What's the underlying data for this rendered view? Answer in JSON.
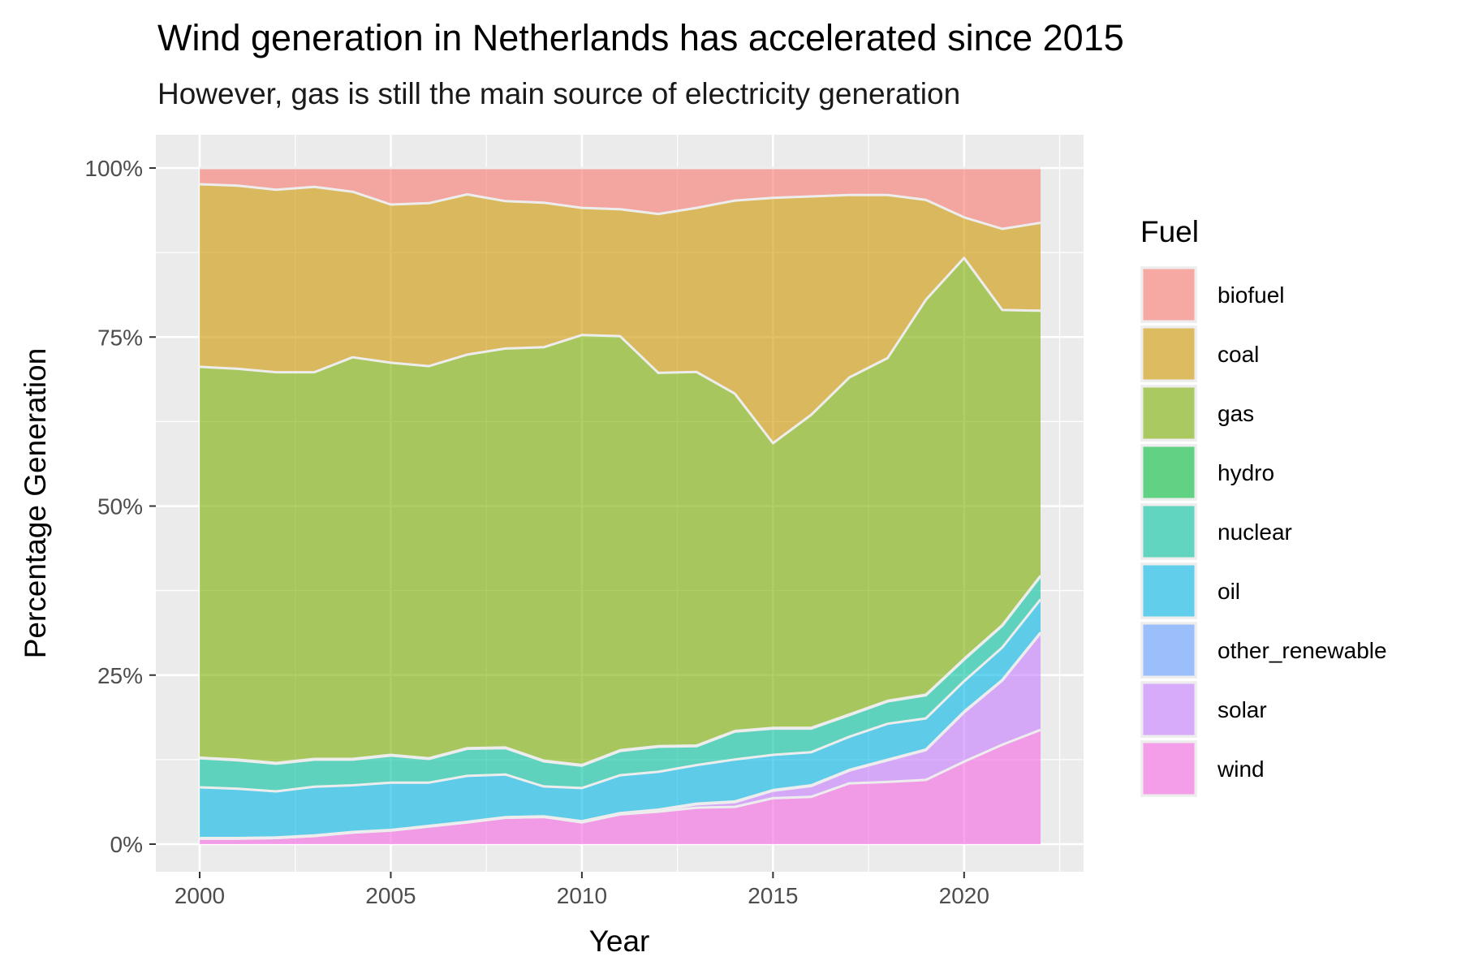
{
  "chart_data": {
    "type": "area",
    "stacked": true,
    "normalized": true,
    "title": "Wind generation in Netherlands has accelerated since 2015",
    "subtitle": "However, gas is still the main source of electricity generation",
    "xlabel": "Year",
    "ylabel": "Percentage Generation",
    "xlim": [
      2000,
      2022
    ],
    "ylim": [
      0,
      1
    ],
    "x_ticks": [
      2000,
      2005,
      2010,
      2015,
      2020
    ],
    "y_ticks": [
      0,
      0.25,
      0.5,
      0.75,
      1.0
    ],
    "y_tick_labels": [
      "0%",
      "25%",
      "50%",
      "75%",
      "100%"
    ],
    "grid": true,
    "legend_title": "Fuel",
    "legend_position": "right",
    "x": [
      2000,
      2001,
      2002,
      2003,
      2004,
      2005,
      2006,
      2007,
      2008,
      2009,
      2010,
      2011,
      2012,
      2013,
      2014,
      2015,
      2016,
      2017,
      2018,
      2019,
      2020,
      2021,
      2022
    ],
    "series": [
      {
        "name": "wind",
        "color": "#F564E3",
        "values": [
          0.8,
          0.8,
          0.9,
          1.2,
          1.7,
          2.0,
          2.6,
          3.2,
          3.9,
          4.0,
          3.2,
          4.4,
          4.8,
          5.4,
          5.5,
          6.8,
          7.0,
          9.0,
          9.2,
          9.5,
          12.2,
          14.7,
          16.9
        ]
      },
      {
        "name": "solar",
        "color": "#C77CFF",
        "values": [
          0,
          0,
          0,
          0,
          0,
          0,
          0,
          0,
          0,
          0,
          0.1,
          0.1,
          0.2,
          0.5,
          0.7,
          1.1,
          1.6,
          1.9,
          3.2,
          4.4,
          7.3,
          9.5,
          14.3
        ]
      },
      {
        "name": "other_renewable",
        "color": "#619CFF",
        "values": [
          0.1,
          0.1,
          0.1,
          0.1,
          0.1,
          0.1,
          0.1,
          0.1,
          0.1,
          0.1,
          0.1,
          0.1,
          0.1,
          0.1,
          0.1,
          0.1,
          0.1,
          0.1,
          0.1,
          0.1,
          0.1,
          0.1,
          0.1
        ]
      },
      {
        "name": "oil",
        "color": "#00B8E7",
        "values": [
          7.5,
          7.3,
          6.8,
          7.2,
          6.9,
          7.0,
          6.4,
          6.8,
          6.3,
          4.4,
          4.9,
          5.6,
          5.6,
          5.7,
          6.2,
          5.2,
          4.9,
          4.9,
          5.3,
          4.6,
          4.5,
          4.8,
          4.9
        ]
      },
      {
        "name": "nuclear",
        "color": "#00C19F",
        "values": [
          4.3,
          4.2,
          4.1,
          4.0,
          3.8,
          4.0,
          3.5,
          4.0,
          3.9,
          3.7,
          3.3,
          3.6,
          3.7,
          2.8,
          4.1,
          3.9,
          3.5,
          3.2,
          3.3,
          3.4,
          3.2,
          3.2,
          3.4
        ]
      },
      {
        "name": "hydro",
        "color": "#00BA38",
        "values": [
          0.1,
          0.1,
          0.1,
          0.1,
          0.1,
          0.1,
          0.1,
          0.1,
          0.1,
          0.1,
          0.1,
          0.1,
          0.1,
          0.1,
          0.1,
          0.1,
          0.1,
          0.1,
          0.1,
          0.1,
          0.1,
          0.1,
          0.1
        ]
      },
      {
        "name": "gas",
        "color": "#7CAE00",
        "values": [
          57.8,
          57.8,
          57.8,
          57.2,
          59.4,
          58.0,
          58.0,
          58.2,
          59.0,
          60.9,
          63.6,
          61.3,
          55.2,
          55.3,
          49.8,
          42.1,
          46.3,
          49.9,
          50.7,
          58.4,
          59.3,
          46.6,
          39.2
        ]
      },
      {
        "name": "coal",
        "color": "#CD9600",
        "values": [
          27.0,
          27.1,
          27.0,
          27.4,
          24.5,
          23.4,
          24.1,
          23.7,
          21.8,
          21.3,
          18.8,
          18.8,
          23.5,
          24.3,
          28.5,
          36.3,
          32.3,
          27.0,
          24.1,
          14.8,
          6.0,
          12.0,
          13.0
        ]
      },
      {
        "name": "biofuel",
        "color": "#F8766D",
        "values": [
          2.4,
          2.6,
          3.2,
          2.8,
          3.5,
          5.4,
          5.2,
          3.9,
          4.9,
          5.1,
          5.9,
          6.1,
          6.8,
          5.9,
          4.8,
          4.4,
          4.2,
          4.0,
          4.0,
          4.7,
          7.3,
          9.0,
          8.1
        ]
      }
    ]
  }
}
